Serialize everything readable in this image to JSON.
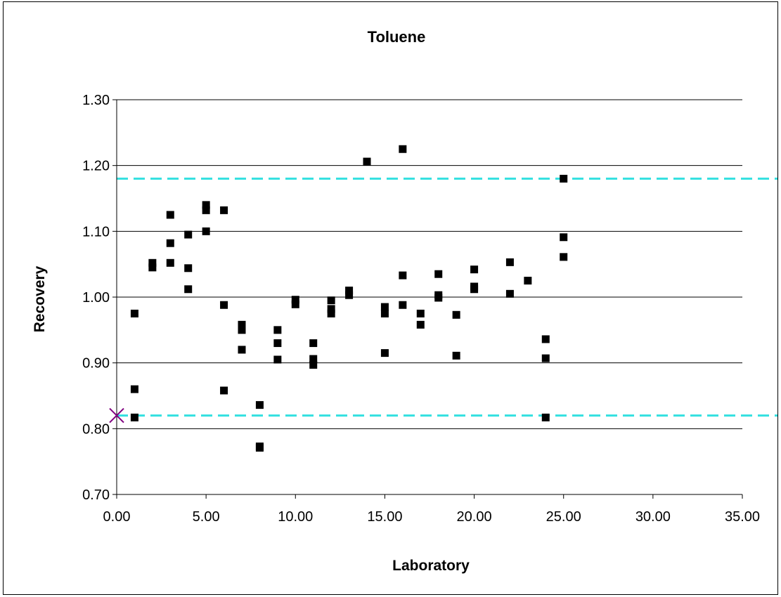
{
  "chart_data": {
    "type": "scatter",
    "title": "Toluene",
    "xlabel": "Laboratory",
    "ylabel": "Recovery",
    "xlim": [
      0,
      35
    ],
    "ylim": [
      0.7,
      1.3
    ],
    "x_ticks": [
      "0.00",
      "5.00",
      "10.00",
      "15.00",
      "20.00",
      "25.00",
      "30.00",
      "35.00"
    ],
    "y_ticks": [
      "0.70",
      "0.80",
      "0.90",
      "1.00",
      "1.10",
      "1.20",
      "1.30"
    ],
    "grid": "horizontal",
    "legend": "none",
    "control_limits": [
      {
        "value": 1.18,
        "color": "#33e0e0",
        "style": "dashed"
      },
      {
        "value": 0.82,
        "color": "#33e0e0",
        "style": "dashed"
      }
    ],
    "marker_point": {
      "x": 0,
      "y": 0.82,
      "color": "#800080",
      "marker": "x"
    },
    "series": [
      {
        "color": "#000000",
        "marker": "square",
        "points": [
          [
            1,
            0.975
          ],
          [
            1,
            0.86
          ],
          [
            1,
            0.817
          ],
          [
            2,
            1.052
          ],
          [
            2,
            1.045
          ],
          [
            3,
            1.125
          ],
          [
            3,
            1.082
          ],
          [
            3,
            1.052
          ],
          [
            4,
            1.095
          ],
          [
            4,
            1.044
          ],
          [
            4,
            1.012
          ],
          [
            5,
            1.14
          ],
          [
            5,
            1.132
          ],
          [
            5,
            1.1
          ],
          [
            6,
            1.132
          ],
          [
            6,
            0.988
          ],
          [
            6,
            0.858
          ],
          [
            7,
            0.958
          ],
          [
            7,
            0.95
          ],
          [
            7,
            0.92
          ],
          [
            8,
            0.836
          ],
          [
            8,
            0.773
          ],
          [
            8,
            0.771
          ],
          [
            9,
            0.95
          ],
          [
            9,
            0.93
          ],
          [
            9,
            0.905
          ],
          [
            10,
            0.996
          ],
          [
            10,
            0.989
          ],
          [
            11,
            0.93
          ],
          [
            11,
            0.906
          ],
          [
            11,
            0.897
          ],
          [
            12,
            0.995
          ],
          [
            12,
            0.982
          ],
          [
            12,
            0.975
          ],
          [
            13,
            1.01
          ],
          [
            13,
            1.003
          ],
          [
            14,
            1.206
          ],
          [
            15,
            0.985
          ],
          [
            15,
            0.975
          ],
          [
            15,
            0.915
          ],
          [
            16,
            1.225
          ],
          [
            16,
            1.033
          ],
          [
            16,
            0.988
          ],
          [
            17,
            0.975
          ],
          [
            17,
            0.958
          ],
          [
            18,
            1.035
          ],
          [
            18,
            1.003
          ],
          [
            18,
            0.999
          ],
          [
            19,
            0.973
          ],
          [
            19,
            0.911
          ],
          [
            20,
            1.042
          ],
          [
            20,
            1.016
          ],
          [
            20,
            1.012
          ],
          [
            22,
            1.053
          ],
          [
            22,
            1.005
          ],
          [
            23,
            1.025
          ],
          [
            24,
            0.936
          ],
          [
            24,
            0.907
          ],
          [
            24,
            0.817
          ],
          [
            25,
            1.18
          ],
          [
            25,
            1.091
          ],
          [
            25,
            1.061
          ]
        ]
      }
    ]
  }
}
